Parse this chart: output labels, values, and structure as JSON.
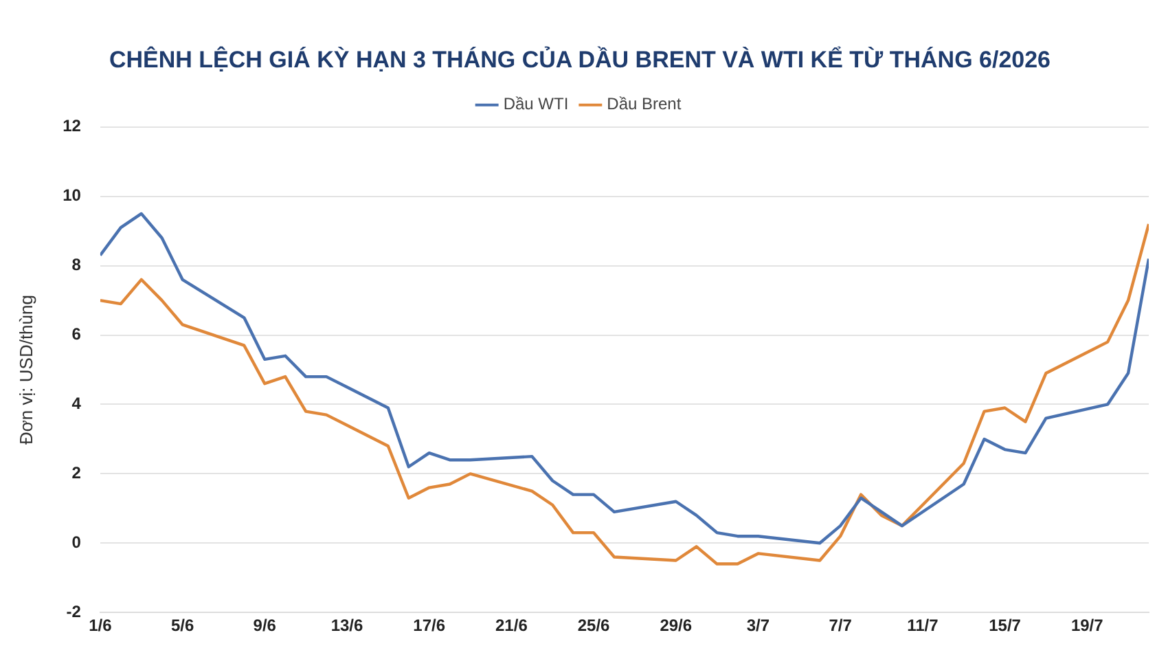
{
  "chart_data": {
    "type": "line",
    "title": "CHÊNH LỆCH GIÁ KỲ HẠN 3 THÁNG CỦA DẦU BRENT VÀ WTI KỂ TỪ THÁNG 6/2026",
    "ylabel": "Đơn vị: USD/thùng",
    "x": [
      "--06-01",
      "--06-02",
      "--06-03",
      "--06-04",
      "--06-05",
      "--06-08",
      "--06-09",
      "--06-10",
      "--06-11",
      "--06-12",
      "--06-15",
      "--06-16",
      "--06-17",
      "--06-18",
      "--06-19",
      "--06-22",
      "--06-23",
      "--06-24",
      "--06-25",
      "--06-26",
      "--06-29",
      "--06-30",
      "--07-01",
      "--07-02",
      "--07-03",
      "--07-06",
      "--07-07",
      "--07-08",
      "--07-09",
      "--07-10",
      "--07-13",
      "--07-14",
      "--07-15",
      "--07-16",
      "--07-17",
      "--07-20",
      "--07-21",
      "--07-22"
    ],
    "series": [
      {
        "name": "Dầu WTI",
        "color": "#4a72b0",
        "values": [
          8.3,
          9.1,
          9.5,
          8.8,
          7.6,
          6.5,
          5.3,
          5.4,
          4.8,
          4.8,
          3.9,
          2.2,
          2.6,
          2.4,
          2.4,
          2.5,
          1.8,
          1.4,
          1.4,
          0.9,
          1.2,
          0.8,
          0.3,
          0.2,
          0.2,
          0.0,
          0.5,
          1.3,
          0.9,
          0.5,
          1.7,
          3.0,
          2.7,
          2.6,
          3.6,
          4.0,
          4.9,
          8.2
        ]
      },
      {
        "name": "Dầu Brent",
        "color": "#e0883a",
        "values": [
          7.0,
          6.9,
          7.6,
          7.0,
          6.3,
          5.7,
          4.6,
          4.8,
          3.8,
          3.7,
          2.8,
          1.3,
          1.6,
          1.7,
          2.0,
          1.5,
          1.1,
          0.3,
          0.3,
          -0.4,
          -0.5,
          -0.1,
          -0.6,
          -0.6,
          -0.3,
          -0.5,
          0.2,
          1.4,
          0.8,
          0.5,
          2.3,
          3.8,
          3.9,
          3.5,
          4.9,
          5.8,
          7.0,
          9.2
        ]
      }
    ],
    "xlim": [
      "--06-01",
      "--07-22"
    ],
    "xticks": [
      {
        "value": "--06-01",
        "label": "1/6"
      },
      {
        "value": "--06-05",
        "label": "5/6"
      },
      {
        "value": "--06-09",
        "label": "9/6"
      },
      {
        "value": "--06-13",
        "label": "13/6"
      },
      {
        "value": "--06-17",
        "label": "17/6"
      },
      {
        "value": "--06-21",
        "label": "21/6"
      },
      {
        "value": "--06-25",
        "label": "25/6"
      },
      {
        "value": "--06-29",
        "label": "29/6"
      },
      {
        "value": "--07-03",
        "label": "3/7"
      },
      {
        "value": "--07-07",
        "label": "7/7"
      },
      {
        "value": "--07-11",
        "label": "11/7"
      },
      {
        "value": "--07-15",
        "label": "15/7"
      },
      {
        "value": "--07-19",
        "label": "19/7"
      }
    ],
    "ylim": [
      -2,
      12
    ],
    "yticks": [
      -2,
      0,
      2,
      4,
      6,
      8,
      10,
      12
    ],
    "grid": "y",
    "legend": "top",
    "marker": "none",
    "line_style": "solid"
  }
}
